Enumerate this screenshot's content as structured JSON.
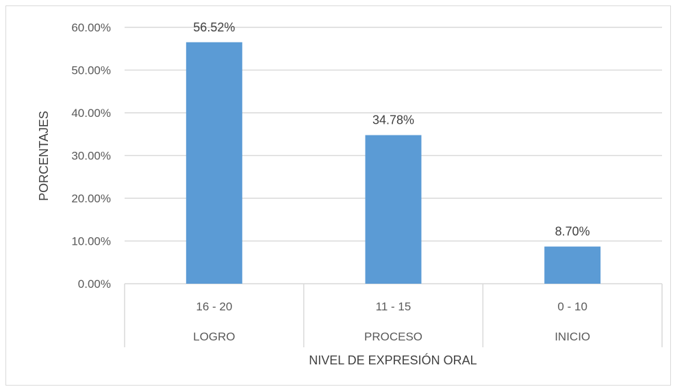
{
  "chart_data": {
    "type": "bar",
    "categories": [
      {
        "range": "16 - 20",
        "group": "LOGRO"
      },
      {
        "range": "11 - 15",
        "group": "PROCESO"
      },
      {
        "range": "0 - 10",
        "group": "INICIO"
      }
    ],
    "values": [
      56.52,
      34.78,
      8.7
    ],
    "data_labels": [
      "56.52%",
      "34.78%",
      "8.70%"
    ],
    "xlabel": "NIVEL DE EXPRESIÓN ORAL",
    "ylabel": "PORCENTAJES",
    "ylim": [
      0,
      60
    ],
    "yticks": [
      0,
      10,
      20,
      30,
      40,
      50,
      60
    ],
    "ytick_labels": [
      "0.00%",
      "10.00%",
      "20.00%",
      "30.00%",
      "40.00%",
      "50.00%",
      "60.00%"
    ],
    "grid": true,
    "legend": "none",
    "colors": {
      "bar": "#5b9bd5",
      "grid": "#d9d9d9",
      "text": "#595959"
    }
  }
}
